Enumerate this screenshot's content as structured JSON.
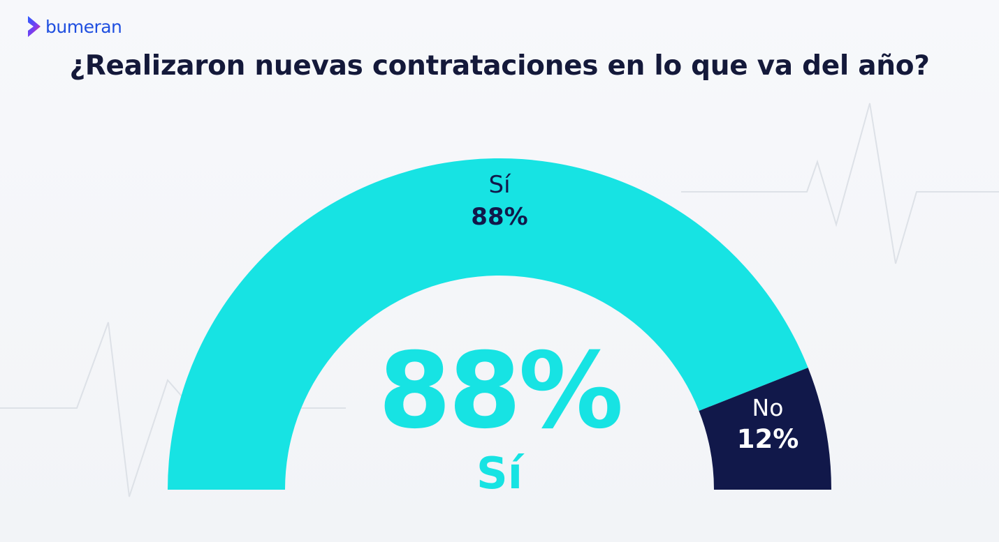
{
  "brand": {
    "name": "bumeran",
    "accent_color": "#1f4fe0"
  },
  "chart_data": {
    "type": "pie",
    "style": "semi-donut gauge",
    "title": "¿Realizaron nuevas contrataciones en lo que va del año?",
    "slices": [
      {
        "label": "Sí",
        "value": 88,
        "display": "88%",
        "color": "#17e3e3"
      },
      {
        "label": "No",
        "value": 12,
        "display": "12%",
        "color": "#11184a"
      }
    ],
    "center_value": "88%",
    "center_label": "Sí"
  }
}
